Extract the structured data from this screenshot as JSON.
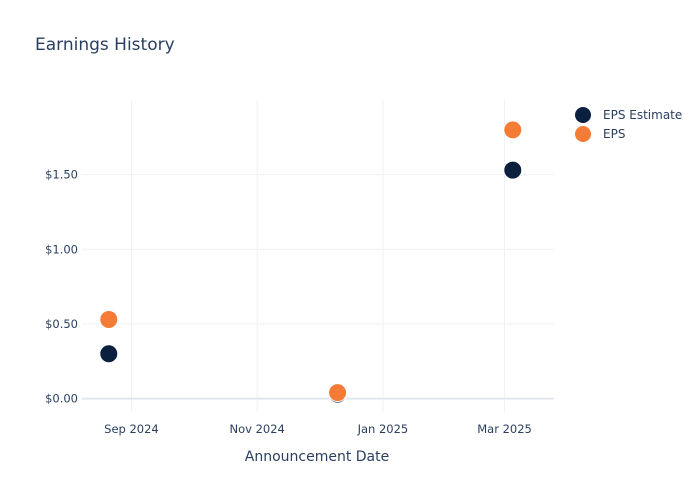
{
  "chart_data": {
    "type": "scatter",
    "title": "Earnings History",
    "xlabel": "Announcement Date",
    "ylabel": "",
    "x_axis_type": "date",
    "xlim": [
      "2024-08-08",
      "2025-03-25"
    ],
    "ylim": [
      -0.09,
      2.0
    ],
    "x_ticks": [
      {
        "value": "2024-09-01",
        "label": "Sep 2024"
      },
      {
        "value": "2024-11-01",
        "label": "Nov 2024"
      },
      {
        "value": "2025-01-01",
        "label": "Jan 2025"
      },
      {
        "value": "2025-03-01",
        "label": "Mar 2025"
      }
    ],
    "y_ticks": [
      {
        "value": 0,
        "label": "$0.00"
      },
      {
        "value": 0.5,
        "label": "$0.50"
      },
      {
        "value": 1.0,
        "label": "$1.00"
      },
      {
        "value": 1.5,
        "label": "$1.50"
      }
    ],
    "grid": true,
    "legend_position": "top-right",
    "series": [
      {
        "name": "EPS Estimate",
        "color": "#0b1f3f",
        "points": [
          {
            "x": "2024-08-21",
            "y": 0.3
          },
          {
            "x": "2024-12-10",
            "y": 0.03
          },
          {
            "x": "2025-03-05",
            "y": 1.53
          }
        ]
      },
      {
        "name": "EPS",
        "color": "#f47c36",
        "points": [
          {
            "x": "2024-08-21",
            "y": 0.53
          },
          {
            "x": "2024-12-10",
            "y": 0.04
          },
          {
            "x": "2025-03-05",
            "y": 1.8
          }
        ]
      }
    ]
  }
}
